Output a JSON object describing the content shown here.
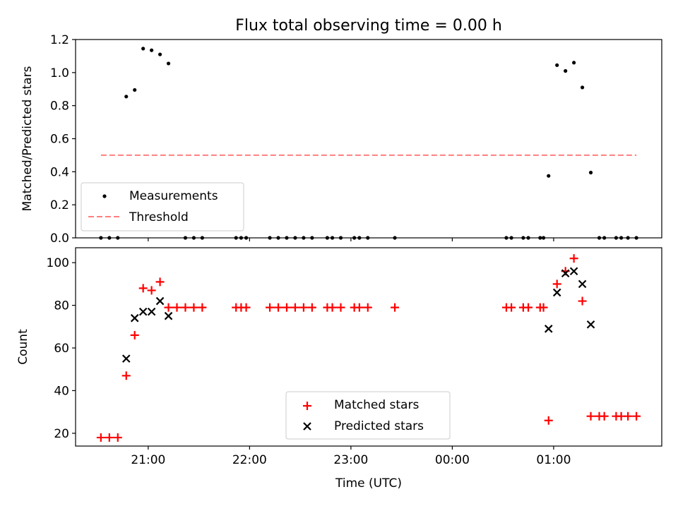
{
  "title": "Flux total observing time = 0.00 h",
  "chart_data": [
    {
      "type": "scatter",
      "ylabel": "Matched/Predicted stars",
      "xlabel": "",
      "xlim": [
        "20:17",
        "02:04"
      ],
      "ylim": [
        0,
        1.2
      ],
      "yticks": [
        "0.0",
        "0.2",
        "0.4",
        "0.6",
        "0.8",
        "1.0",
        "1.2"
      ],
      "grid": false,
      "legend": {
        "placement": "lower-left",
        "entries": [
          "Measurements",
          "Threshold"
        ]
      },
      "series": [
        {
          "name": "Measurements",
          "marker": "dot",
          "color": "#000000",
          "points": [
            [
              "20:32",
              0
            ],
            [
              "20:37",
              0
            ],
            [
              "20:42",
              0
            ],
            [
              "20:47",
              0.855
            ],
            [
              "20:52",
              0.895
            ],
            [
              "20:57",
              1.145
            ],
            [
              "21:02",
              1.135
            ],
            [
              "21:07",
              1.11
            ],
            [
              "21:12",
              1.055
            ],
            [
              "21:22",
              0
            ],
            [
              "21:27",
              0
            ],
            [
              "21:32",
              0
            ],
            [
              "21:52",
              0
            ],
            [
              "21:55",
              0
            ],
            [
              "21:58",
              0
            ],
            [
              "22:12",
              0
            ],
            [
              "22:17",
              0
            ],
            [
              "22:22",
              0
            ],
            [
              "22:27",
              0
            ],
            [
              "22:32",
              0
            ],
            [
              "22:37",
              0
            ],
            [
              "22:46",
              0
            ],
            [
              "22:49",
              0
            ],
            [
              "22:54",
              0
            ],
            [
              "23:02",
              0
            ],
            [
              "23:05",
              0
            ],
            [
              "23:10",
              0
            ],
            [
              "23:26",
              0
            ],
            [
              "00:32",
              0
            ],
            [
              "00:35",
              0
            ],
            [
              "00:42",
              0
            ],
            [
              "00:45",
              0
            ],
            [
              "00:52",
              0
            ],
            [
              "00:54",
              0
            ],
            [
              "00:57",
              0.375
            ],
            [
              "01:02",
              1.045
            ],
            [
              "01:07",
              1.01
            ],
            [
              "01:12",
              1.06
            ],
            [
              "01:17",
              0.91
            ],
            [
              "01:22",
              0.395
            ],
            [
              "01:27",
              0
            ],
            [
              "01:30",
              0
            ],
            [
              "01:37",
              0
            ],
            [
              "01:40",
              0
            ],
            [
              "01:44",
              0
            ],
            [
              "01:49",
              0
            ]
          ]
        },
        {
          "name": "Threshold",
          "marker": "dashed-line",
          "color": "#ff7f7f",
          "points": [
            [
              "20:32",
              0.5
            ],
            [
              "01:49",
              0.5
            ]
          ]
        }
      ]
    },
    {
      "type": "scatter",
      "ylabel": "Count",
      "xlabel": "Time (UTC)",
      "xlim": [
        "20:17",
        "02:04"
      ],
      "ylim": [
        14,
        107
      ],
      "yticks": [
        "20",
        "40",
        "60",
        "80",
        "100"
      ],
      "xticks": [
        "21:00",
        "22:00",
        "23:00",
        "00:00",
        "01:00"
      ],
      "grid": false,
      "legend": {
        "placement": "lower-center",
        "entries": [
          "Matched stars",
          "Predicted stars"
        ]
      },
      "series": [
        {
          "name": "Matched stars",
          "marker": "plus",
          "color": "#ff0000",
          "points": [
            [
              "20:32",
              18
            ],
            [
              "20:37",
              18
            ],
            [
              "20:42",
              18
            ],
            [
              "20:47",
              47
            ],
            [
              "20:52",
              66
            ],
            [
              "20:57",
              88
            ],
            [
              "21:02",
              87
            ],
            [
              "21:07",
              91
            ],
            [
              "21:12",
              79
            ],
            [
              "21:17",
              79
            ],
            [
              "21:22",
              79
            ],
            [
              "21:27",
              79
            ],
            [
              "21:32",
              79
            ],
            [
              "21:52",
              79
            ],
            [
              "21:55",
              79
            ],
            [
              "21:58",
              79
            ],
            [
              "22:12",
              79
            ],
            [
              "22:17",
              79
            ],
            [
              "22:22",
              79
            ],
            [
              "22:27",
              79
            ],
            [
              "22:32",
              79
            ],
            [
              "22:37",
              79
            ],
            [
              "22:46",
              79
            ],
            [
              "22:49",
              79
            ],
            [
              "22:54",
              79
            ],
            [
              "23:02",
              79
            ],
            [
              "23:05",
              79
            ],
            [
              "23:10",
              79
            ],
            [
              "23:26",
              79
            ],
            [
              "00:32",
              79
            ],
            [
              "00:35",
              79
            ],
            [
              "00:42",
              79
            ],
            [
              "00:45",
              79
            ],
            [
              "00:52",
              79
            ],
            [
              "00:54",
              79
            ],
            [
              "00:57",
              26
            ],
            [
              "01:02",
              90
            ],
            [
              "01:07",
              96
            ],
            [
              "01:12",
              102
            ],
            [
              "01:17",
              82
            ],
            [
              "01:22",
              28
            ],
            [
              "01:27",
              28
            ],
            [
              "01:30",
              28
            ],
            [
              "01:37",
              28
            ],
            [
              "01:40",
              28
            ],
            [
              "01:44",
              28
            ],
            [
              "01:49",
              28
            ]
          ]
        },
        {
          "name": "Predicted stars",
          "marker": "x",
          "color": "#000000",
          "points": [
            [
              "20:47",
              55
            ],
            [
              "20:52",
              74
            ],
            [
              "20:57",
              77
            ],
            [
              "21:02",
              77
            ],
            [
              "21:07",
              82
            ],
            [
              "21:12",
              75
            ],
            [
              "00:57",
              69
            ],
            [
              "01:02",
              86
            ],
            [
              "01:07",
              95
            ],
            [
              "01:12",
              96
            ],
            [
              "01:17",
              90
            ],
            [
              "01:22",
              71
            ]
          ]
        }
      ]
    }
  ]
}
